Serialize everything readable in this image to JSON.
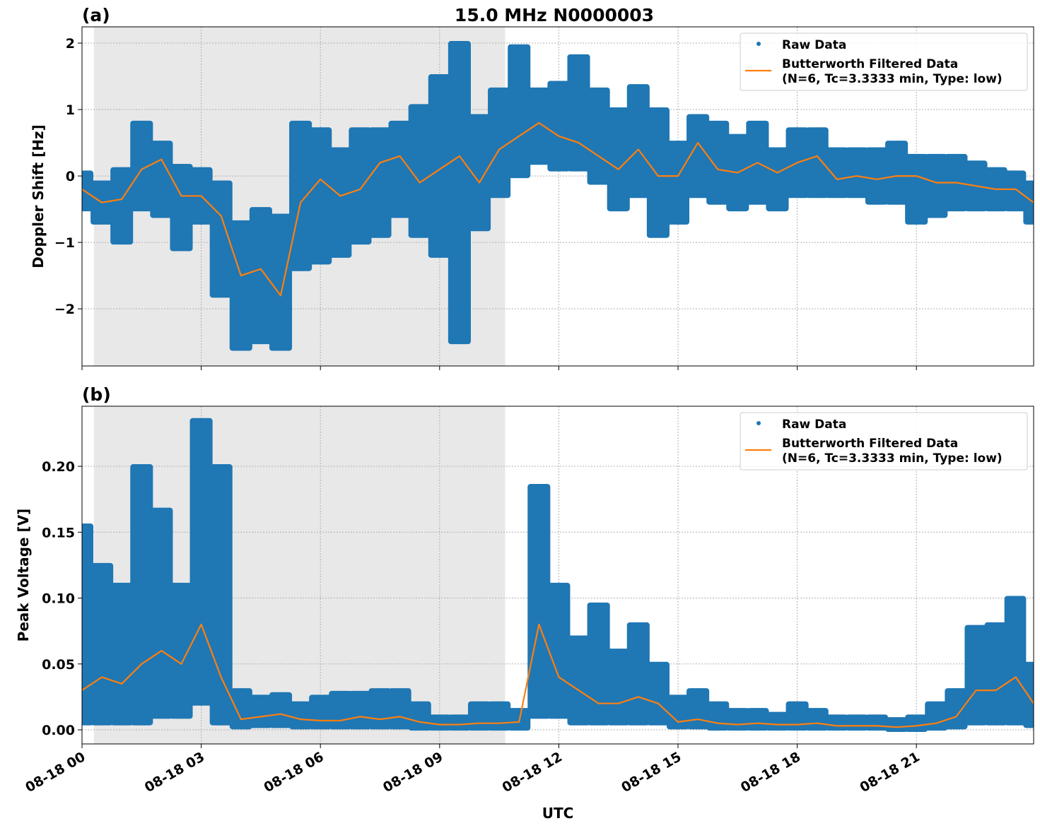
{
  "chart_data": [
    {
      "type": "scatter+line",
      "panel_label": "(a)",
      "title": "15.0 MHz N0000003",
      "xlabel": "",
      "ylabel": "Doppler Shift [Hz]",
      "ylim": [
        -2.86,
        2.245
      ],
      "yticks": [
        2,
        1,
        0,
        -1,
        -2
      ],
      "ytick_labels": [
        "2",
        "1",
        "0",
        "−1",
        "−2"
      ],
      "xlim_hours": [
        0,
        23.95
      ],
      "xticks_hours": [
        0,
        3,
        6,
        9,
        12,
        15,
        18,
        21
      ],
      "grid": true,
      "legend_placement": "top-right",
      "shaded_span_hours": [
        0.3,
        10.65
      ],
      "legend": [
        "Raw Data",
        "Butterworth Filtered Data",
        "(N=6, Tc=3.3333 min, Type: low)"
      ],
      "x_hours": [
        0,
        0.5,
        1,
        1.5,
        2,
        2.5,
        3,
        3.5,
        4,
        4.5,
        5,
        5.5,
        6,
        6.5,
        7,
        7.5,
        8,
        8.5,
        9,
        9.5,
        10,
        10.5,
        11,
        11.5,
        12,
        12.5,
        13,
        13.5,
        14,
        14.5,
        15,
        15.5,
        16,
        16.5,
        17,
        17.5,
        18,
        18.5,
        19,
        19.5,
        20,
        20.5,
        21,
        21.5,
        22,
        22.5,
        23,
        23.5,
        23.95
      ],
      "series": [
        {
          "name": "Butterworth Filtered Data",
          "kind": "line",
          "values": [
            -0.2,
            -0.4,
            -0.35,
            0.1,
            0.25,
            -0.3,
            -0.3,
            -0.6,
            -1.5,
            -1.4,
            -1.8,
            -0.4,
            -0.05,
            -0.3,
            -0.2,
            0.2,
            0.3,
            -0.1,
            0.1,
            0.3,
            -0.1,
            0.4,
            0.6,
            0.8,
            0.6,
            0.5,
            0.3,
            0.1,
            0.4,
            0.0,
            0.0,
            0.5,
            0.1,
            0.05,
            0.2,
            0.05,
            0.2,
            0.3,
            -0.05,
            0.0,
            -0.05,
            0.0,
            0.0,
            -0.1,
            -0.1,
            -0.15,
            -0.2,
            -0.2,
            -0.4
          ]
        },
        {
          "name": "Raw Data",
          "kind": "scatter-range",
          "min": [
            -0.5,
            -0.7,
            -1.0,
            -0.5,
            -0.6,
            -1.1,
            -0.7,
            -1.8,
            -2.6,
            -2.5,
            -2.6,
            -1.4,
            -1.3,
            -1.2,
            -1.0,
            -0.9,
            -0.6,
            -0.9,
            -1.2,
            -2.5,
            -0.8,
            -0.3,
            0.0,
            0.2,
            0.1,
            0.1,
            -0.1,
            -0.5,
            -0.3,
            -0.9,
            -0.7,
            -0.3,
            -0.4,
            -0.5,
            -0.4,
            -0.5,
            -0.3,
            -0.3,
            -0.3,
            -0.3,
            -0.4,
            -0.4,
            -0.7,
            -0.6,
            -0.5,
            -0.5,
            -0.5,
            -0.5,
            -0.7
          ],
          "max": [
            0.05,
            -0.1,
            0.1,
            0.8,
            0.5,
            0.15,
            0.1,
            -0.1,
            -0.7,
            -0.5,
            -0.6,
            0.8,
            0.7,
            0.4,
            0.7,
            0.7,
            0.8,
            1.05,
            1.5,
            2.0,
            0.9,
            1.3,
            1.95,
            1.3,
            1.4,
            1.8,
            1.3,
            1.0,
            1.35,
            1.0,
            0.5,
            0.9,
            0.8,
            0.6,
            0.8,
            0.4,
            0.7,
            0.7,
            0.4,
            0.4,
            0.4,
            0.5,
            0.3,
            0.3,
            0.3,
            0.2,
            0.1,
            0.05,
            -0.1
          ]
        }
      ]
    },
    {
      "type": "scatter+line",
      "panel_label": "(b)",
      "xlabel": "UTC",
      "ylabel": "Peak Voltage [V]",
      "ylim": [
        -0.0107,
        0.2456
      ],
      "yticks": [
        0.2,
        0.15,
        0.1,
        0.05,
        0.0
      ],
      "ytick_labels": [
        "0.20",
        "0.15",
        "0.10",
        "0.05",
        "0.00"
      ],
      "xlim_hours": [
        0,
        23.95
      ],
      "xticks_hours": [
        0,
        3,
        6,
        9,
        12,
        15,
        18,
        21
      ],
      "xtick_labels": [
        "08-18 00",
        "08-18 03",
        "08-18 06",
        "08-18 09",
        "08-18 12",
        "08-18 15",
        "08-18 18",
        "08-18 21"
      ],
      "grid": true,
      "legend_placement": "top-right",
      "shaded_span_hours": [
        0.3,
        10.65
      ],
      "legend": [
        "Raw Data",
        "Butterworth Filtered Data",
        "(N=6, Tc=3.3333 min, Type: low)"
      ],
      "x_hours": [
        0,
        0.5,
        1,
        1.5,
        2,
        2.5,
        3,
        3.5,
        4,
        4.5,
        5,
        5.5,
        6,
        6.5,
        7,
        7.5,
        8,
        8.5,
        9,
        9.5,
        10,
        10.5,
        11,
        11.5,
        12,
        12.5,
        13,
        13.5,
        14,
        14.5,
        15,
        15.5,
        16,
        16.5,
        17,
        17.5,
        18,
        18.5,
        19,
        19.5,
        20,
        20.5,
        21,
        21.5,
        22,
        22.5,
        23,
        23.5,
        23.95
      ],
      "series": [
        {
          "name": "Butterworth Filtered Data",
          "kind": "line",
          "values": [
            0.03,
            0.04,
            0.035,
            0.05,
            0.06,
            0.05,
            0.08,
            0.04,
            0.008,
            0.01,
            0.012,
            0.008,
            0.007,
            0.007,
            0.01,
            0.008,
            0.01,
            0.006,
            0.004,
            0.004,
            0.005,
            0.005,
            0.006,
            0.08,
            0.04,
            0.03,
            0.02,
            0.02,
            0.025,
            0.02,
            0.006,
            0.008,
            0.005,
            0.004,
            0.005,
            0.004,
            0.004,
            0.005,
            0.003,
            0.003,
            0.003,
            0.002,
            0.003,
            0.005,
            0.01,
            0.03,
            0.03,
            0.04,
            0.02
          ]
        },
        {
          "name": "Raw Data",
          "kind": "scatter-range",
          "min": [
            0.005,
            0.005,
            0.005,
            0.005,
            0.01,
            0.01,
            0.02,
            0.005,
            0.002,
            0.003,
            0.003,
            0.002,
            0.002,
            0.002,
            0.002,
            0.002,
            0.002,
            0.001,
            0.001,
            0.001,
            0.001,
            0.001,
            0.001,
            0.01,
            0.01,
            0.005,
            0.005,
            0.005,
            0.005,
            0.005,
            0.002,
            0.002,
            0.001,
            0.001,
            0.001,
            0.001,
            0.001,
            0.001,
            0.001,
            0.001,
            0.001,
            0.0,
            0.0,
            0.001,
            0.002,
            0.005,
            0.005,
            0.005,
            0.003
          ],
          "max": [
            0.155,
            0.125,
            0.11,
            0.2,
            0.167,
            0.11,
            0.235,
            0.2,
            0.03,
            0.025,
            0.027,
            0.02,
            0.025,
            0.028,
            0.028,
            0.03,
            0.03,
            0.02,
            0.01,
            0.01,
            0.02,
            0.02,
            0.015,
            0.185,
            0.11,
            0.07,
            0.095,
            0.06,
            0.08,
            0.05,
            0.025,
            0.03,
            0.02,
            0.015,
            0.015,
            0.012,
            0.02,
            0.015,
            0.01,
            0.01,
            0.01,
            0.008,
            0.01,
            0.02,
            0.03,
            0.078,
            0.08,
            0.1,
            0.05
          ]
        }
      ]
    }
  ],
  "colors": {
    "raw": "#1f77b4",
    "filtered": "#ff7f0e",
    "shade": "#e8e8e8",
    "grid": "#b0b0b0"
  }
}
